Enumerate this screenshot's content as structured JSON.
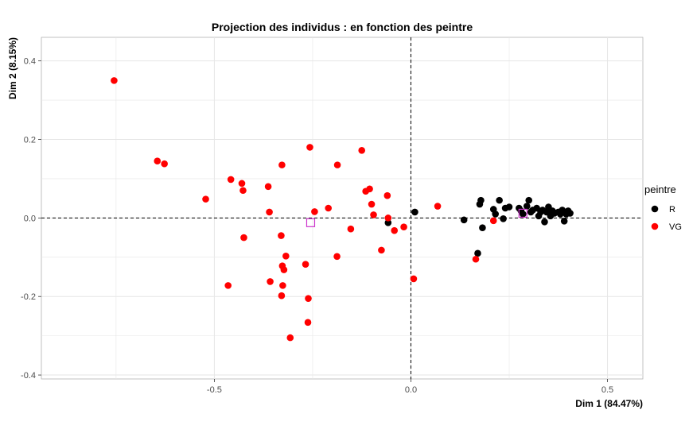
{
  "chart_data": {
    "type": "scatter",
    "title": "Projection des individus : en fonction des peintre",
    "xlabel": "Dim 1 (84.47%)",
    "ylabel": "Dim 2 (8.15%)",
    "xlim": [
      -0.94,
      0.59
    ],
    "ylim": [
      -0.41,
      0.46
    ],
    "xticks": [
      -0.5,
      0.0,
      0.5
    ],
    "xtick_labels": [
      "-0.5",
      "0.0",
      "0.5"
    ],
    "yticks": [
      -0.4,
      -0.2,
      0.0,
      0.2,
      0.4
    ],
    "ytick_labels": [
      "-0.4",
      "-0.2",
      "0.0",
      "0.2",
      "0.4"
    ],
    "grid": true,
    "reference_lines": {
      "x": 0,
      "y": 0,
      "style": "dashed"
    },
    "legend": {
      "title": "peintre",
      "position": "right"
    },
    "series": [
      {
        "name": "R",
        "color": "#000000",
        "points": [
          [
            -0.058,
            -0.012
          ],
          [
            0.01,
            0.015
          ],
          [
            0.135,
            -0.005
          ],
          [
            0.17,
            -0.09
          ],
          [
            0.175,
            0.035
          ],
          [
            0.178,
            0.045
          ],
          [
            0.182,
            -0.025
          ],
          [
            0.21,
            0.022
          ],
          [
            0.215,
            0.01
          ],
          [
            0.225,
            0.045
          ],
          [
            0.235,
            -0.002
          ],
          [
            0.24,
            0.025
          ],
          [
            0.25,
            0.028
          ],
          [
            0.275,
            0.025
          ],
          [
            0.28,
            0.018
          ],
          [
            0.285,
            0.01
          ],
          [
            0.295,
            0.03
          ],
          [
            0.3,
            0.045
          ],
          [
            0.305,
            0.015
          ],
          [
            0.31,
            0.02
          ],
          [
            0.32,
            0.025
          ],
          [
            0.325,
            0.005
          ],
          [
            0.33,
            0.015
          ],
          [
            0.335,
            0.02
          ],
          [
            0.34,
            -0.01
          ],
          [
            0.345,
            0.015
          ],
          [
            0.35,
            0.028
          ],
          [
            0.355,
            0.005
          ],
          [
            0.36,
            0.018
          ],
          [
            0.365,
            0.012
          ],
          [
            0.375,
            0.015
          ],
          [
            0.38,
            0.01
          ],
          [
            0.385,
            0.02
          ],
          [
            0.39,
            -0.008
          ],
          [
            0.395,
            0.01
          ],
          [
            0.4,
            0.018
          ],
          [
            0.405,
            0.012
          ]
        ]
      },
      {
        "name": "VG",
        "color": "#ff0000",
        "points": [
          [
            -0.755,
            0.35
          ],
          [
            -0.645,
            0.145
          ],
          [
            -0.627,
            0.138
          ],
          [
            -0.522,
            0.048
          ],
          [
            -0.465,
            -0.172
          ],
          [
            -0.458,
            0.098
          ],
          [
            -0.43,
            0.088
          ],
          [
            -0.427,
            0.07
          ],
          [
            -0.425,
            -0.05
          ],
          [
            -0.363,
            0.08
          ],
          [
            -0.36,
            0.015
          ],
          [
            -0.358,
            -0.162
          ],
          [
            -0.33,
            -0.045
          ],
          [
            -0.329,
            -0.198
          ],
          [
            -0.328,
            0.135
          ],
          [
            -0.327,
            -0.122
          ],
          [
            -0.326,
            -0.172
          ],
          [
            -0.323,
            -0.132
          ],
          [
            -0.318,
            -0.097
          ],
          [
            -0.307,
            -0.305
          ],
          [
            -0.268,
            -0.118
          ],
          [
            -0.262,
            -0.266
          ],
          [
            -0.261,
            -0.205
          ],
          [
            -0.257,
            0.18
          ],
          [
            -0.245,
            0.016
          ],
          [
            -0.21,
            0.025
          ],
          [
            -0.188,
            -0.098
          ],
          [
            -0.187,
            0.135
          ],
          [
            -0.153,
            -0.028
          ],
          [
            -0.125,
            0.172
          ],
          [
            -0.115,
            0.068
          ],
          [
            -0.105,
            0.074
          ],
          [
            -0.1,
            0.035
          ],
          [
            -0.095,
            0.008
          ],
          [
            -0.075,
            -0.082
          ],
          [
            -0.06,
            0.057
          ],
          [
            -0.058,
            0.0
          ],
          [
            -0.042,
            -0.032
          ],
          [
            -0.018,
            -0.023
          ],
          [
            0.007,
            -0.155
          ],
          [
            0.068,
            0.03
          ],
          [
            0.165,
            -0.105
          ],
          [
            0.21,
            -0.007
          ]
        ]
      }
    ],
    "centroids": [
      {
        "group": "VG",
        "x": -0.255,
        "y": -0.012,
        "marker": "open-square",
        "color": "#cc33cc"
      },
      {
        "group": "R",
        "x": 0.285,
        "y": 0.012,
        "marker": "open-square",
        "color": "#cc33cc"
      }
    ]
  }
}
